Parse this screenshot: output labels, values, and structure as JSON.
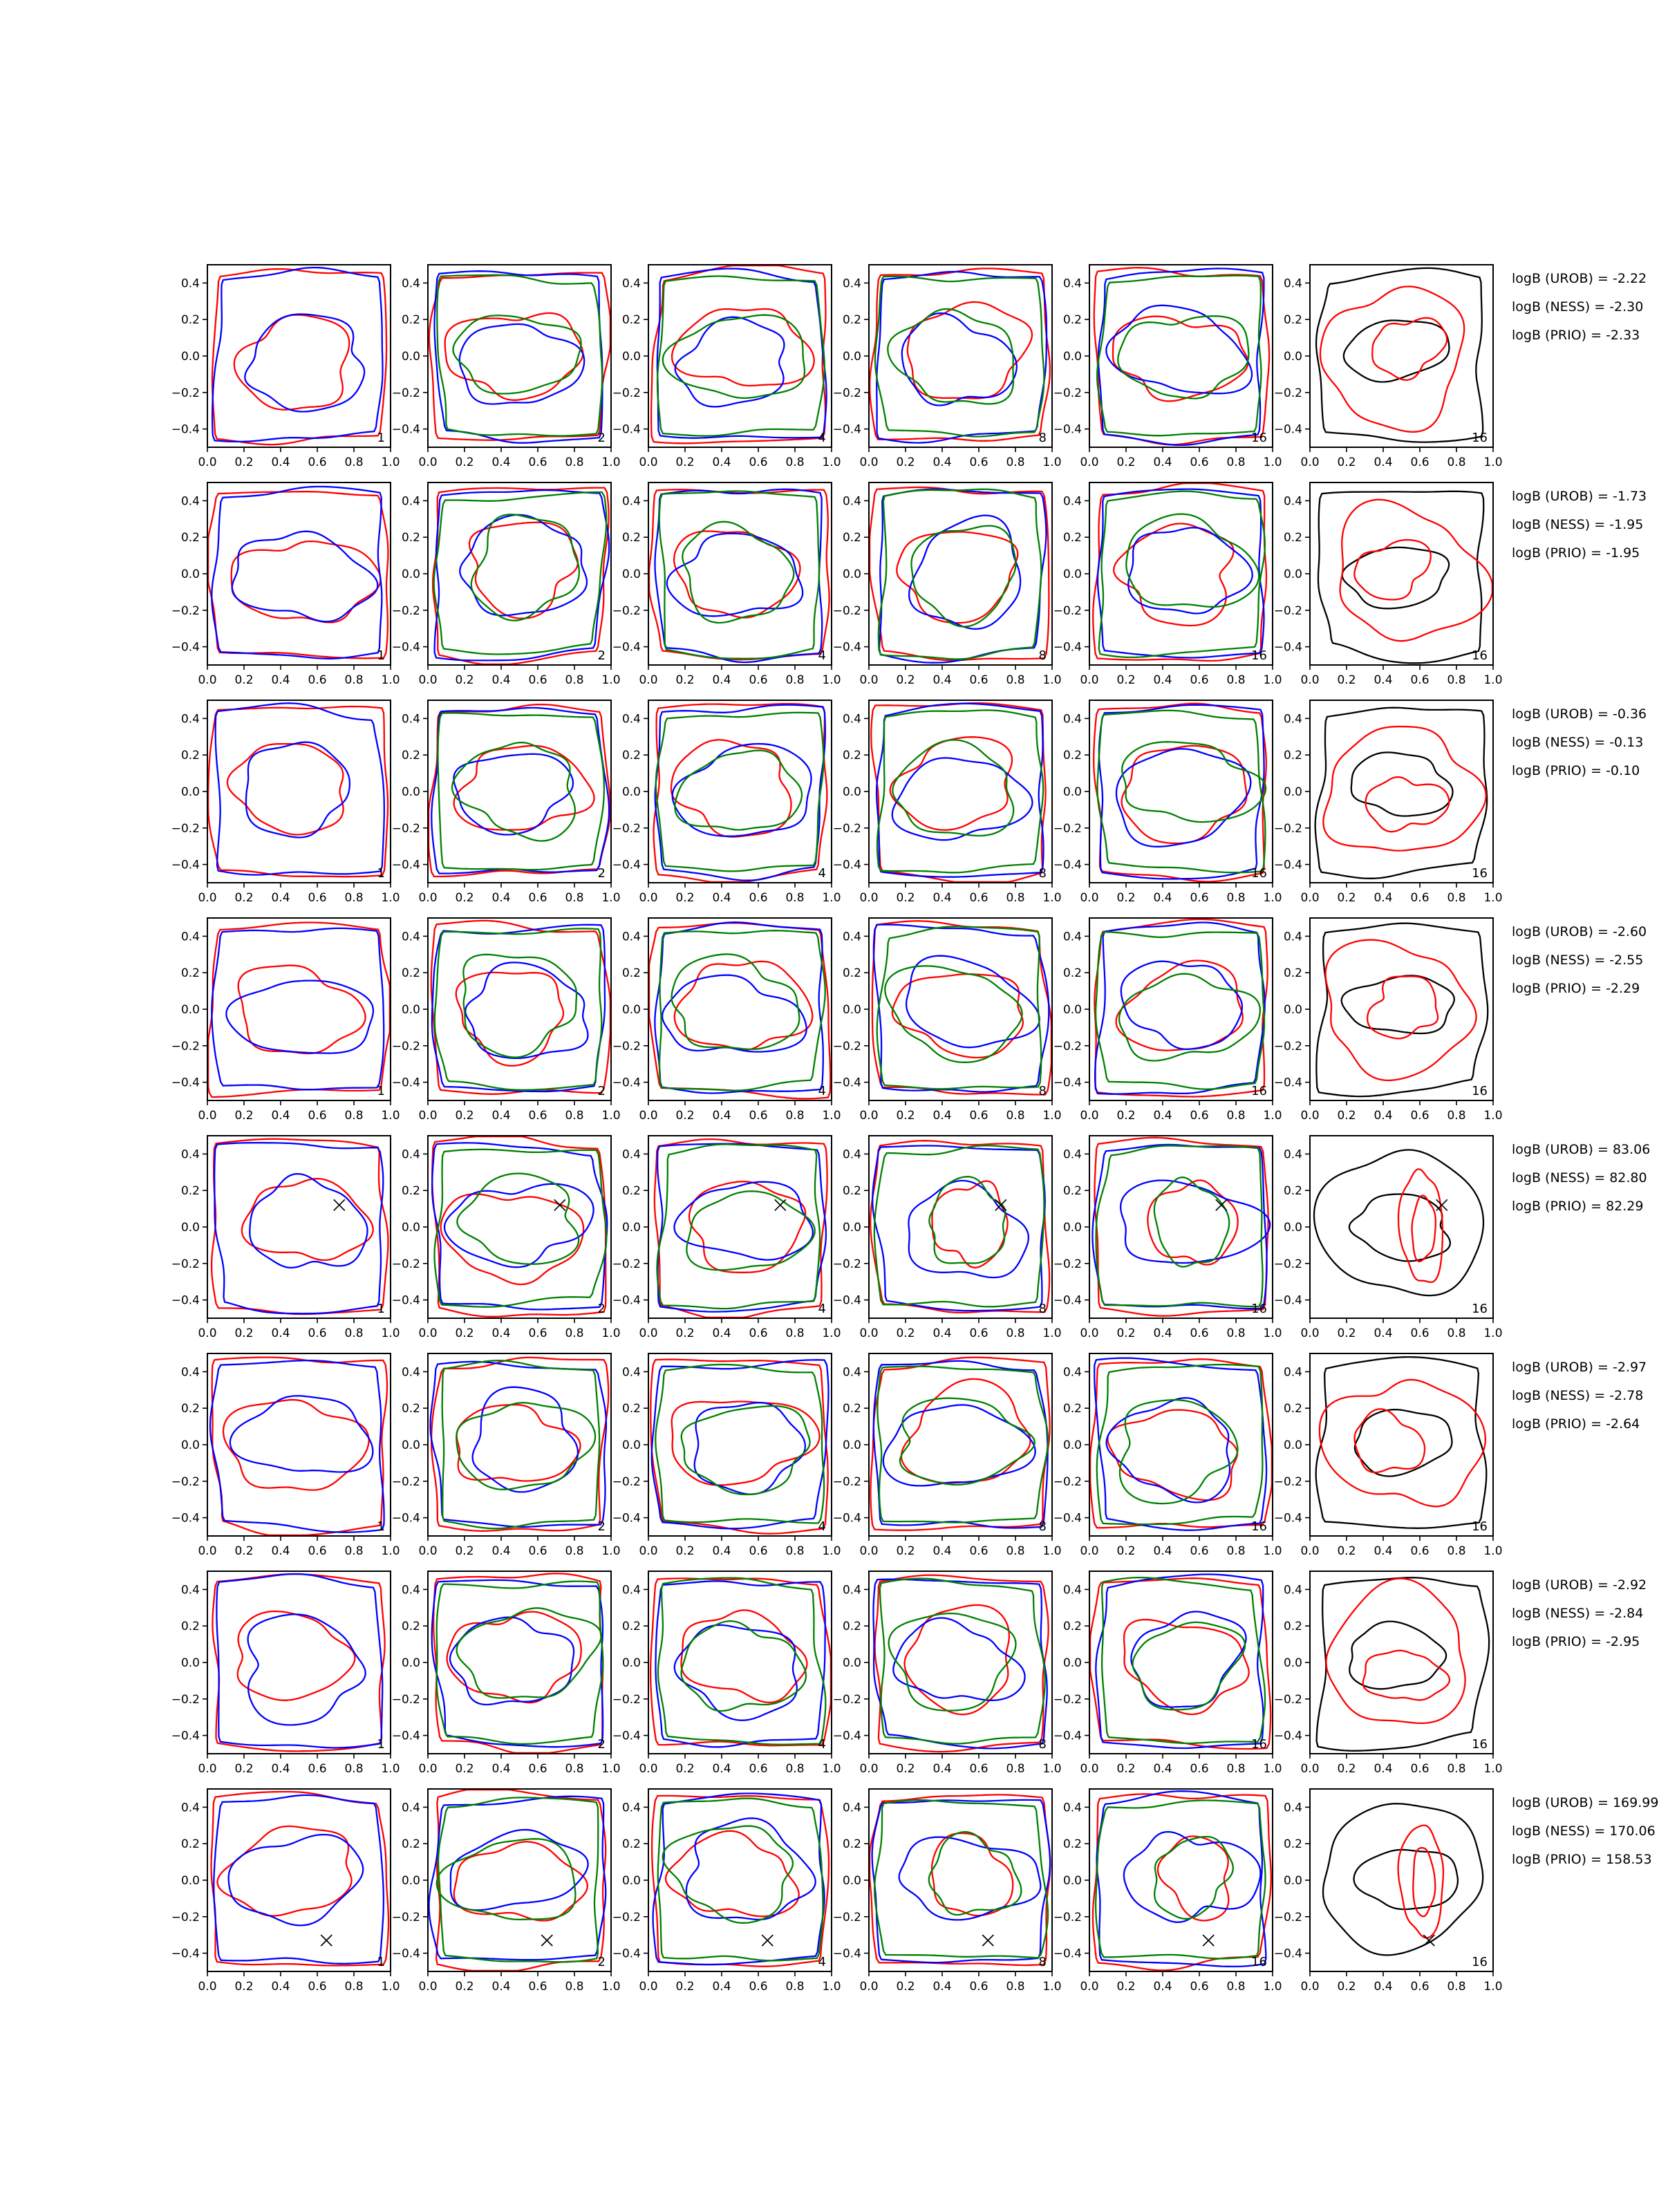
{
  "palette": {
    "red": "#ff0000",
    "blue": "#0000ff",
    "green": "#008000",
    "black": "#000000"
  },
  "chart_data": {
    "type": "contour-grid",
    "grid": {
      "rows": 8,
      "cols": 6
    },
    "methods": [
      "UROB",
      "NESS",
      "PRIO"
    ],
    "annotation_format": "logB ({method}) = {value}",
    "axes": {
      "xlim": [
        0.0,
        1.0
      ],
      "ylim": [
        -0.5,
        0.5
      ],
      "x_tick_labels": [
        "0.0",
        "0.2",
        "0.4",
        "0.6",
        "0.8",
        "1.0"
      ],
      "y_tick_values": [
        0.4,
        0.2,
        0.0,
        -0.2,
        -0.4
      ],
      "y_tick_labels": [
        "0.4",
        "0.2",
        "0.0",
        "−0.2",
        "−0.4"
      ],
      "grid_lines": false
    },
    "contour_levels_per_series": 2,
    "columns": [
      {
        "corner_label": "1",
        "series_colors": [
          "red",
          "blue"
        ]
      },
      {
        "corner_label": "2",
        "series_colors": [
          "red",
          "blue",
          "green"
        ]
      },
      {
        "corner_label": "4",
        "series_colors": [
          "red",
          "blue",
          "green"
        ]
      },
      {
        "corner_label": "8",
        "series_colors": [
          "red",
          "blue",
          "green"
        ]
      },
      {
        "corner_label": "16",
        "series_colors": [
          "red",
          "blue",
          "green"
        ]
      },
      {
        "corner_label": "16",
        "series_colors": [
          "black",
          "red"
        ]
      }
    ],
    "rows": [
      {
        "logB": {
          "UROB": -2.22,
          "NESS": -2.3,
          "PRIO": -2.33
        },
        "marker": null,
        "annotation_lines": [
          "logB (UROB) = -2.22",
          "logB (NESS) = -2.30",
          "logB (PRIO) = -2.33"
        ]
      },
      {
        "logB": {
          "UROB": -1.73,
          "NESS": -1.95,
          "PRIO": -1.95
        },
        "marker": null,
        "annotation_lines": [
          "logB (UROB) = -1.73",
          "logB (NESS) = -1.95",
          "logB (PRIO) = -1.95"
        ]
      },
      {
        "logB": {
          "UROB": -0.36,
          "NESS": -0.13,
          "PRIO": -0.1
        },
        "marker": null,
        "annotation_lines": [
          "logB (UROB) = -0.36",
          "logB (NESS) = -0.13",
          "logB (PRIO) = -0.10"
        ]
      },
      {
        "logB": {
          "UROB": -2.6,
          "NESS": -2.55,
          "PRIO": -2.29
        },
        "marker": null,
        "annotation_lines": [
          "logB (UROB) = -2.60",
          "logB (NESS) = -2.55",
          "logB (PRIO) = -2.29"
        ]
      },
      {
        "logB": {
          "UROB": 83.06,
          "NESS": 82.8,
          "PRIO": 82.29
        },
        "marker": {
          "x": 0.72,
          "y": 0.12
        },
        "annotation_lines": [
          "logB (UROB) = 83.06",
          "logB (NESS) = 82.80",
          "logB (PRIO) = 82.29"
        ]
      },
      {
        "logB": {
          "UROB": -2.97,
          "NESS": -2.78,
          "PRIO": -2.64
        },
        "marker": null,
        "annotation_lines": [
          "logB (UROB) = -2.97",
          "logB (NESS) = -2.78",
          "logB (PRIO) = -2.64"
        ]
      },
      {
        "logB": {
          "UROB": -2.92,
          "NESS": -2.84,
          "PRIO": -2.95
        },
        "marker": null,
        "annotation_lines": [
          "logB (UROB) = -2.92",
          "logB (NESS) = -2.84",
          "logB (PRIO) = -2.95"
        ]
      },
      {
        "logB": {
          "UROB": 169.99,
          "NESS": 170.06,
          "PRIO": 158.53
        },
        "marker": {
          "x": 0.65,
          "y": -0.33
        },
        "annotation_lines": [
          "logB (UROB) = 169.99",
          "logB (NESS) = 170.06",
          "logB (PRIO) = 158.53"
        ]
      }
    ]
  }
}
